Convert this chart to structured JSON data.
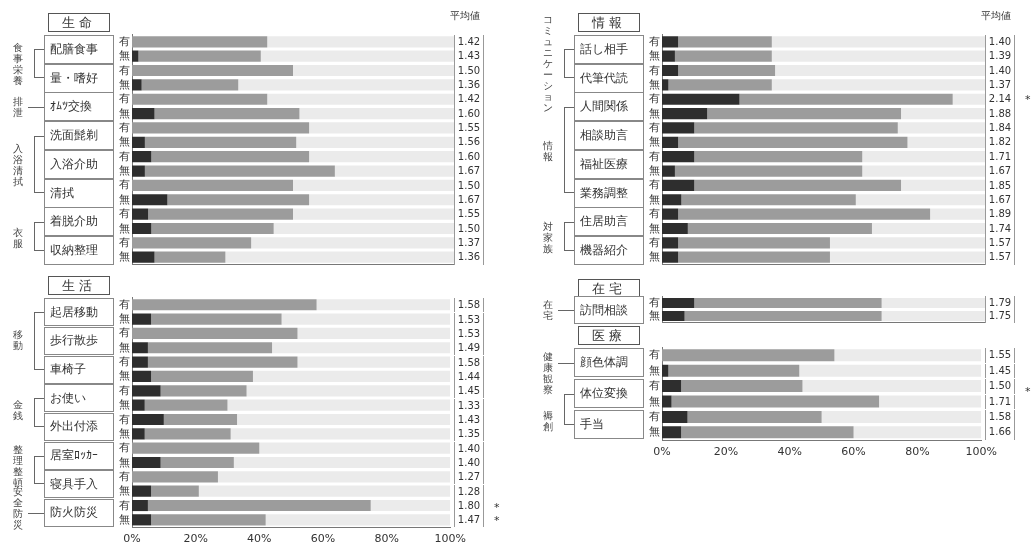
{
  "chart_data": [
    {
      "type": "bar",
      "orientation": "horizontal",
      "stacked": true,
      "title": "生命",
      "categories": [
        "有",
        "無",
        "有",
        "無",
        "有",
        "無",
        "有",
        "無",
        "有",
        "無",
        "有",
        "無",
        "有",
        "無",
        "有",
        "無"
      ],
      "series": [
        {
          "color": "#2e2e2e",
          "values": [
            0,
            2,
            0,
            3,
            0,
            7,
            0,
            4,
            6,
            4,
            0,
            11,
            5,
            6,
            0,
            7
          ]
        },
        {
          "color": "#9c9c9c",
          "values": [
            42,
            38,
            50,
            30,
            42,
            45,
            55,
            47,
            49,
            59,
            50,
            44,
            45,
            38,
            37,
            22
          ]
        },
        {
          "color": "#ebebeb",
          "values": [
            58,
            60,
            50,
            67,
            58,
            48,
            45,
            49,
            45,
            37,
            50,
            45,
            50,
            56,
            63,
            71
          ]
        }
      ],
      "xlim": [
        0,
        100
      ],
      "tick_labels": "y",
      "annotations": [
        "平均値",
        "1.42",
        "1.43",
        "1.50",
        "1.36",
        "1.42",
        "1.60",
        "1.55",
        "1.56",
        "1.60",
        "1.67",
        "1.50",
        "1.67",
        "1.55",
        "1.50",
        "1.37",
        "1.36",
        "配膳食事",
        "量・嗜好",
        "ｵﾑﾂ交換",
        "洗面髭剃",
        "入浴介助",
        "清拭",
        "着脱介助",
        "収納整理",
        "食事栄養",
        "排泄",
        "入浴清拭",
        "衣服"
      ]
    },
    {
      "type": "bar",
      "orientation": "horizontal",
      "stacked": true,
      "title": "生活",
      "categories": [
        "有",
        "無",
        "有",
        "無",
        "有",
        "無",
        "有",
        "無",
        "有",
        "無",
        "有",
        "無",
        "有",
        "無",
        "有",
        "無"
      ],
      "series": [
        {
          "color": "#2e2e2e",
          "values": [
            0,
            6,
            0,
            5,
            5,
            6,
            9,
            4,
            10,
            4,
            0,
            9,
            0,
            6,
            5,
            6
          ]
        },
        {
          "color": "#9c9c9c",
          "values": [
            58,
            41,
            52,
            39,
            47,
            32,
            27,
            26,
            23,
            27,
            40,
            23,
            27,
            15,
            70,
            36
          ]
        },
        {
          "color": "#ebebeb",
          "values": [
            42,
            53,
            48,
            56,
            48,
            62,
            64,
            70,
            67,
            69,
            60,
            68,
            73,
            79,
            25,
            58
          ]
        }
      ],
      "xlim": [
        0,
        100
      ],
      "xticks": [
        {
          "value": 0,
          "label": "0%"
        },
        {
          "value": 20,
          "label": "20%"
        },
        {
          "value": 40,
          "label": "40%"
        },
        {
          "value": 60,
          "label": "60%"
        },
        {
          "value": 80,
          "label": "80%"
        },
        {
          "value": 100,
          "label": "100%"
        }
      ],
      "annotations": [
        "1.58",
        "1.53",
        "1.53",
        "1.49",
        "1.58",
        "1.44",
        "1.45",
        "1.33",
        "1.43",
        "1.35",
        "1.40",
        "1.40",
        "1.27",
        "1.28",
        "1.80",
        "1.47",
        "起居移動",
        "歩行散歩",
        "車椅子",
        "お使い",
        "外出付添",
        "居室ﾛｯｶｰ",
        "寝具手入",
        "防火防災",
        "移動",
        "金銭",
        "整理整頓",
        "安全防災",
        "* *"
      ]
    },
    {
      "type": "bar",
      "orientation": "horizontal",
      "stacked": true,
      "title": "情報",
      "categories": [
        "有",
        "無",
        "有",
        "無",
        "有",
        "無",
        "有",
        "無",
        "有",
        "無",
        "有",
        "無",
        "有",
        "無",
        "有",
        "無"
      ],
      "series": [
        {
          "color": "#2e2e2e",
          "values": [
            5,
            4,
            5,
            2,
            24,
            14,
            10,
            5,
            10,
            4,
            10,
            6,
            5,
            8,
            5,
            5
          ]
        },
        {
          "color": "#9c9c9c",
          "values": [
            29,
            30,
            30,
            32,
            66,
            60,
            63,
            71,
            52,
            58,
            64,
            54,
            78,
            57,
            47,
            47
          ]
        },
        {
          "color": "#ebebeb",
          "values": [
            66,
            66,
            65,
            66,
            10,
            26,
            27,
            24,
            38,
            38,
            26,
            40,
            17,
            35,
            48,
            48
          ]
        }
      ],
      "xlim": [
        0,
        100
      ],
      "tick_labels": "y",
      "annotations": [
        "平均値",
        "1.40",
        "1.39",
        "1.40",
        "1.37",
        "2.14",
        "1.88",
        "1.84",
        "1.82",
        "1.71",
        "1.67",
        "1.85",
        "1.67",
        "1.89",
        "1.74",
        "1.57",
        "1.57",
        "話し相手",
        "代筆代読",
        "人間関係",
        "相談助言",
        "福祉医療",
        "業務調整",
        "住居助言",
        "機器紹介",
        "コミュニケーション",
        "情報",
        "対家族",
        "*"
      ]
    },
    {
      "type": "bar",
      "orientation": "horizontal",
      "stacked": true,
      "title": "在宅",
      "categories": [
        "有",
        "無"
      ],
      "series": [
        {
          "color": "#2e2e2e",
          "values": [
            10,
            7
          ]
        },
        {
          "color": "#9c9c9c",
          "values": [
            58,
            61
          ]
        },
        {
          "color": "#ebebeb",
          "values": [
            32,
            32
          ]
        }
      ],
      "xlim": [
        0,
        100
      ],
      "tick_labels": "y",
      "annotations": [
        "1.79",
        "1.75",
        "訪問相談",
        "在宅"
      ]
    },
    {
      "type": "bar",
      "orientation": "horizontal",
      "stacked": true,
      "title": "医療",
      "categories": [
        "有",
        "無",
        "有",
        "無",
        "有",
        "無"
      ],
      "series": [
        {
          "color": "#2e2e2e",
          "values": [
            0,
            2,
            6,
            3,
            8,
            6
          ]
        },
        {
          "color": "#9c9c9c",
          "values": [
            54,
            41,
            38,
            65,
            42,
            54
          ]
        },
        {
          "color": "#ebebeb",
          "values": [
            46,
            57,
            56,
            32,
            50,
            40
          ]
        }
      ],
      "xlim": [
        0,
        100
      ],
      "xticks": [
        {
          "value": 0,
          "label": "0%"
        },
        {
          "value": 20,
          "label": "20%"
        },
        {
          "value": 40,
          "label": "40%"
        },
        {
          "value": 60,
          "label": "60%"
        },
        {
          "value": 80,
          "label": "80%"
        },
        {
          "value": 100,
          "label": "100%"
        }
      ],
      "annotations": [
        "1.55",
        "1.45",
        "1.50",
        "1.71",
        "1.58",
        "1.66",
        "顔色体調",
        "体位変換",
        "手当",
        "健康観察",
        "褥創",
        "*"
      ]
    }
  ]
}
